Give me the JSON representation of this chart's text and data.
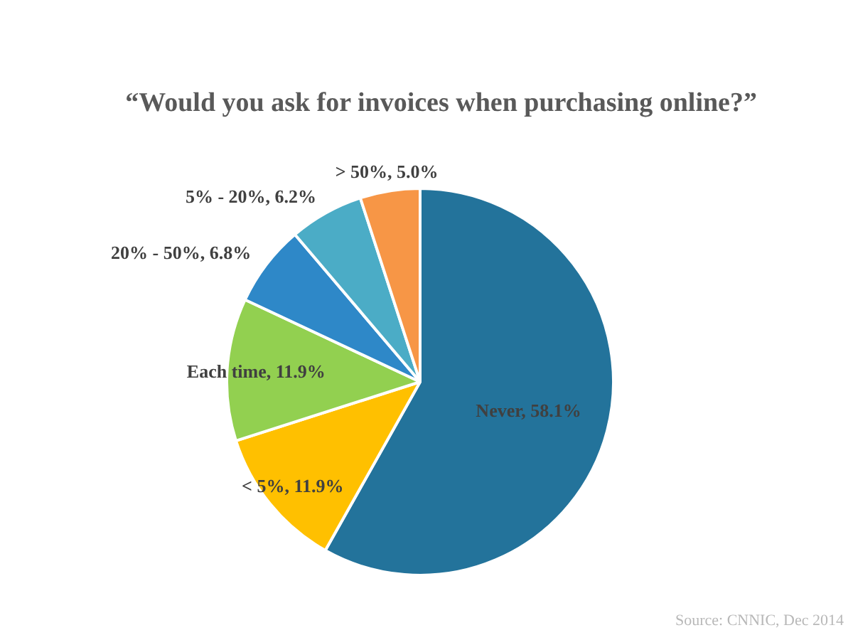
{
  "chart_data": {
    "type": "pie",
    "title": "“Would you ask for invoices when purchasing online?”",
    "categories": [
      "Never",
      "< 5%",
      "Each time",
      "20% - 50%",
      "5% - 20%",
      "> 50%"
    ],
    "values": [
      58.1,
      11.9,
      11.9,
      6.8,
      6.2,
      5.0
    ],
    "colors": [
      "#23739b",
      "#ffc000",
      "#92d050",
      "#2e88c8",
      "#4bacc6",
      "#f79646"
    ],
    "value_labels": [
      "58.1%",
      "11.9%",
      "11.9%",
      "6.8%",
      "6.2%",
      "5.0%"
    ],
    "annotations": [
      "Source: CNNIC, Dec 2014"
    ]
  }
}
